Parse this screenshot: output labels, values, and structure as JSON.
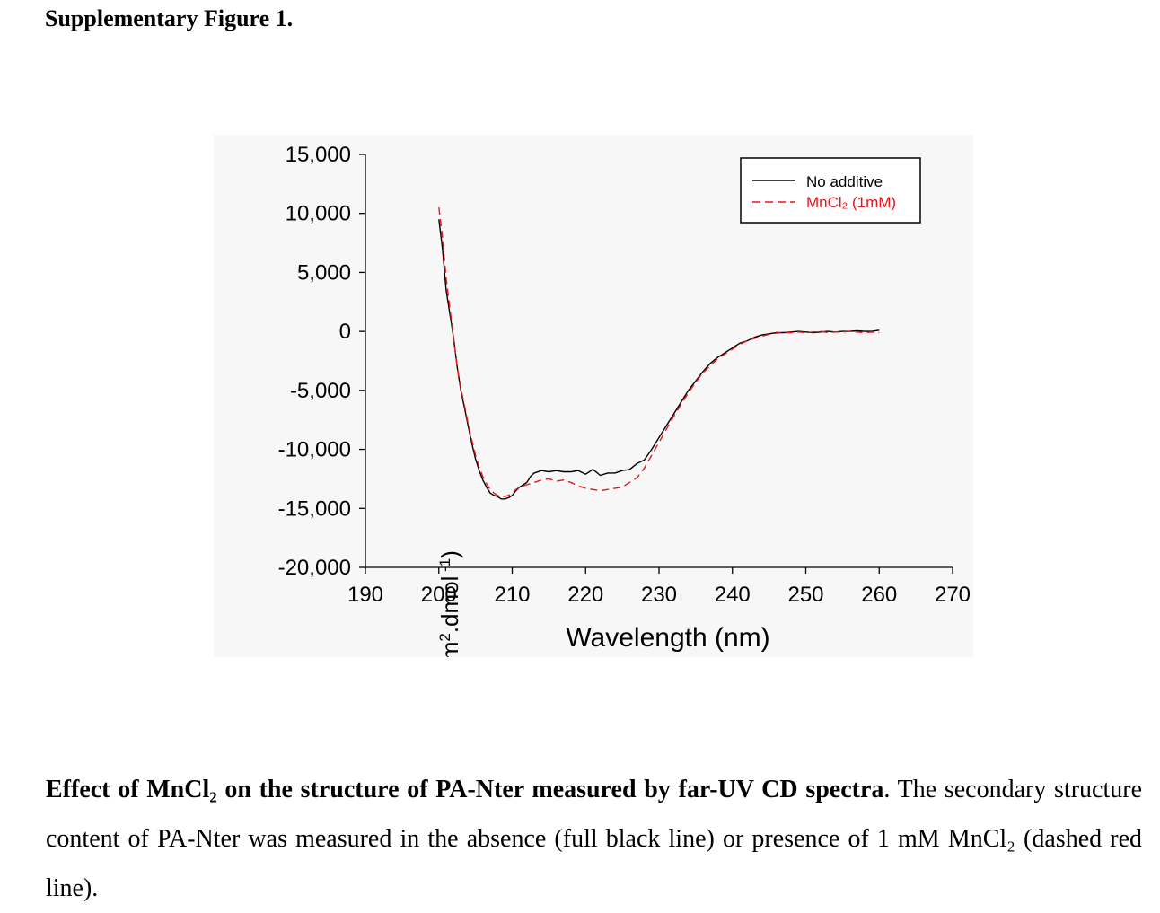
{
  "heading": "Supplementary Figure 1.",
  "chart_data": {
    "type": "line",
    "xlabel": "Wavelength (nm)",
    "ylabel_main": "Ellipticity (deg.cm",
    "ylabel_sup1": "2",
    "ylabel_mid": ".dmol",
    "ylabel_sup2": " -1",
    "ylabel_end": ")",
    "xlim": [
      190,
      270
    ],
    "ylim": [
      -20000,
      15000
    ],
    "xticks": [
      190,
      200,
      210,
      220,
      230,
      240,
      250,
      260,
      270
    ],
    "yticks": [
      15000,
      10000,
      5000,
      0,
      -5000,
      -10000,
      -15000,
      -20000
    ],
    "ytick_labels": [
      "15,000",
      "10,000",
      "5,000",
      "0",
      "-5,000",
      "-10,000",
      "-15,000",
      "-20,000"
    ],
    "grid": false,
    "legend_position": "top-right",
    "series": [
      {
        "name": "No additive",
        "color": "#000000",
        "style": "solid",
        "x": [
          200,
          200.5,
          201,
          201.5,
          202,
          202.5,
          203,
          203.5,
          204,
          204.5,
          205,
          205.5,
          206,
          206.5,
          207,
          207.5,
          208,
          208.5,
          209,
          209.5,
          210,
          210.5,
          211,
          211.5,
          212,
          212.5,
          213,
          214,
          215,
          216,
          217,
          218,
          219,
          220,
          221,
          222,
          223,
          224,
          225,
          226,
          227,
          228,
          229,
          230,
          231,
          232,
          233,
          234,
          235,
          236,
          237,
          238,
          239,
          240,
          241,
          242,
          243,
          244,
          245,
          246,
          247,
          248,
          249,
          250,
          251,
          252,
          253,
          254,
          255,
          256,
          257,
          258,
          259,
          260
        ],
        "y": [
          9500,
          7000,
          3500,
          1500,
          -500,
          -3000,
          -5000,
          -6500,
          -8000,
          -9500,
          -10800,
          -11800,
          -12600,
          -13200,
          -13700,
          -13900,
          -14000,
          -14200,
          -14200,
          -14100,
          -13900,
          -13500,
          -13200,
          -13000,
          -12800,
          -12300,
          -12000,
          -11800,
          -11900,
          -11800,
          -11900,
          -11900,
          -11800,
          -12100,
          -11700,
          -12200,
          -12000,
          -12000,
          -11800,
          -11700,
          -11200,
          -10900,
          -10000,
          -9000,
          -8000,
          -7000,
          -6000,
          -5000,
          -4200,
          -3400,
          -2700,
          -2200,
          -1800,
          -1400,
          -1000,
          -800,
          -500,
          -300,
          -200,
          -100,
          -100,
          -50,
          0,
          -50,
          -100,
          -50,
          0,
          -50,
          0,
          0,
          50,
          0,
          0,
          100
        ]
      },
      {
        "name": "MnCl₂ (1mM)",
        "color": "#e8141c",
        "style": "dashed",
        "x": [
          200,
          200.5,
          201,
          201.5,
          202,
          202.5,
          203,
          203.5,
          204,
          204.5,
          205,
          205.5,
          206,
          206.5,
          207,
          207.5,
          208,
          208.5,
          209,
          209.5,
          210,
          210.5,
          211,
          212,
          213,
          214,
          215,
          216,
          217,
          218,
          219,
          220,
          221,
          222,
          223,
          224,
          225,
          226,
          227,
          228,
          229,
          230,
          231,
          232,
          233,
          234,
          235,
          236,
          237,
          238,
          239,
          240,
          241,
          242,
          243,
          244,
          245,
          246,
          247,
          248,
          249,
          250,
          251,
          252,
          253,
          254,
          255,
          256,
          257,
          258,
          259,
          260
        ],
        "y": [
          10500,
          8000,
          4500,
          2000,
          -500,
          -3000,
          -4800,
          -6300,
          -7800,
          -9200,
          -10500,
          -11500,
          -12300,
          -12900,
          -13400,
          -13700,
          -13900,
          -14000,
          -14000,
          -13900,
          -13700,
          -13400,
          -13200,
          -13000,
          -12800,
          -12600,
          -12500,
          -12700,
          -12600,
          -12800,
          -13100,
          -13300,
          -13400,
          -13500,
          -13400,
          -13300,
          -13200,
          -12800,
          -12400,
          -11600,
          -10500,
          -9400,
          -8300,
          -7200,
          -6200,
          -5200,
          -4300,
          -3500,
          -2900,
          -2300,
          -1900,
          -1500,
          -1100,
          -800,
          -600,
          -400,
          -250,
          -150,
          -100,
          -100,
          -50,
          -100,
          -50,
          0,
          -100,
          -50,
          -50,
          0,
          -50,
          -100,
          -50,
          -100
        ]
      }
    ]
  },
  "caption": {
    "bold_part": "Effect of MnCl₂ on the structure of PA-Nter measured by far-UV CD spectra",
    "rest": ". The secondary structure content of PA-Nter was measured in the absence (full black line) or presence of 1 mM MnCl₂ (dashed red line)."
  }
}
